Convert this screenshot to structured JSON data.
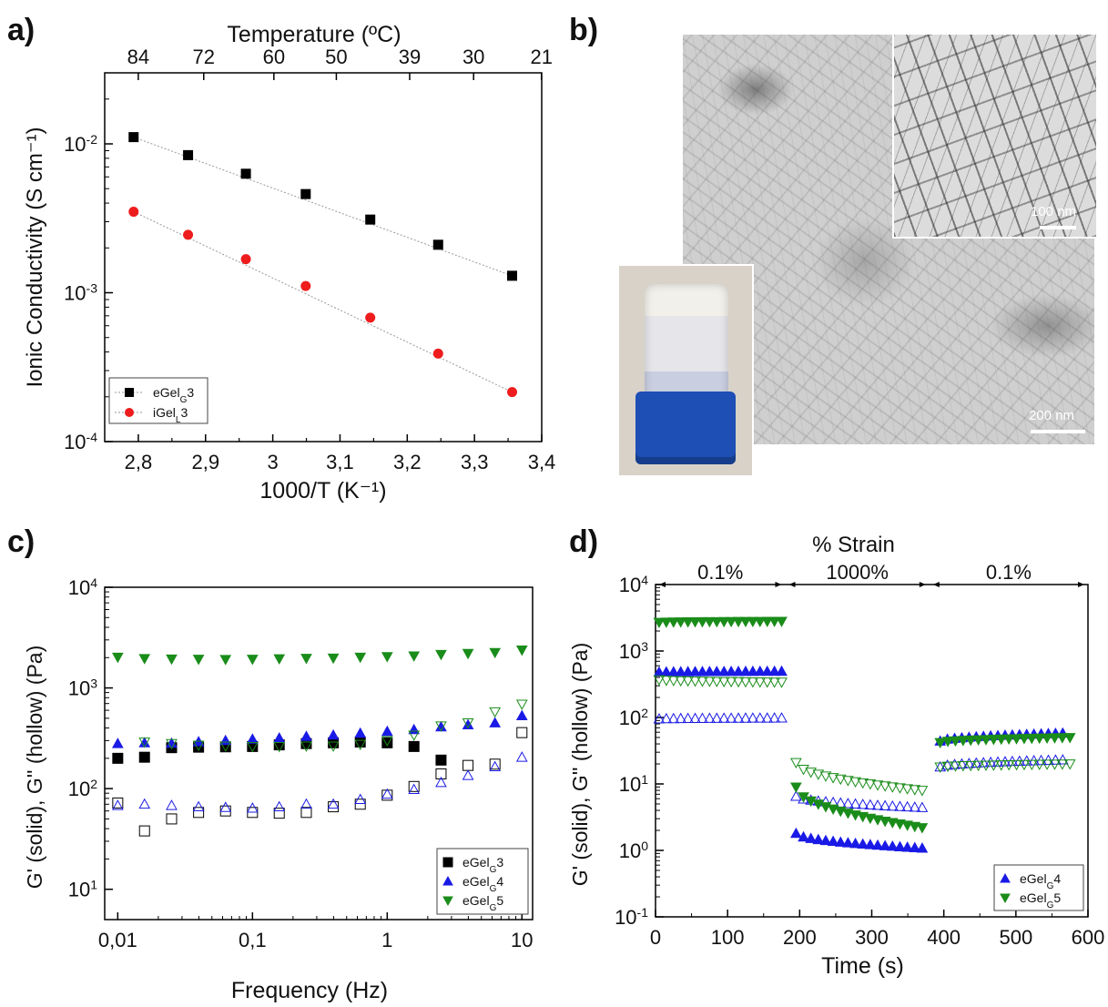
{
  "panels": {
    "a": "a)",
    "b": "b)",
    "c": "c)",
    "d": "d)"
  },
  "chart_data": [
    {
      "type": "scatter",
      "panel": "a",
      "xlabel": "1000/T (K⁻¹)",
      "ylabel": "Ionic Conductivity (S cm⁻¹)",
      "top_axis_label": "Temperature (ºC)",
      "x_ticks": [
        "2,8",
        "2,9",
        "3",
        "3,1",
        "3,2",
        "3,3",
        "3,4"
      ],
      "top_ticks": [
        "84",
        "72",
        "60",
        "50",
        "39",
        "30",
        "21"
      ],
      "xlim": [
        2.75,
        3.4
      ],
      "ylim": [
        0.0001,
        0.03
      ],
      "y_scale": "log",
      "legend_position": "bottom-left",
      "series": [
        {
          "name": "eGelG3",
          "label_main": "eGel",
          "label_sub": "G",
          "label_tail": "3",
          "marker": "square",
          "color": "#000000",
          "x": [
            2.793,
            2.874,
            2.96,
            3.049,
            3.145,
            3.246,
            3.356
          ],
          "y": [
            0.0111,
            0.0084,
            0.0063,
            0.0046,
            0.0031,
            0.0021,
            0.0013
          ]
        },
        {
          "name": "iGelL3",
          "label_main": "iGel",
          "label_sub": "L",
          "label_tail": "3",
          "marker": "circle",
          "color": "#ee1c1c",
          "x": [
            2.793,
            2.874,
            2.96,
            3.049,
            3.145,
            3.246,
            3.356
          ],
          "y": [
            0.0035,
            0.00245,
            0.00168,
            0.00111,
            0.00068,
            0.00039,
            0.000215
          ]
        }
      ]
    },
    {
      "type": "scatter",
      "panel": "c",
      "xlabel": "Frequency (Hz)",
      "ylabel": "G' (solid), G'' (hollow) (Pa)",
      "x_scale": "log",
      "y_scale": "log",
      "x_ticks": [
        "0,01",
        "0,1",
        "1",
        "10"
      ],
      "xlim": [
        0.008,
        12
      ],
      "ylim": [
        5,
        10000
      ],
      "legend_position": "bottom-right",
      "x": [
        0.01,
        0.0158,
        0.0251,
        0.0398,
        0.0631,
        0.1,
        0.158,
        0.251,
        0.398,
        0.631,
        1,
        1.58,
        2.51,
        3.98,
        6.31,
        10
      ],
      "series": [
        {
          "name": "eGelG3",
          "label_main": "eGel",
          "label_sub": "G",
          "label_tail": "3",
          "marker": "square",
          "color": "#000000",
          "Gp": [
            200,
            205,
            255,
            258,
            260,
            262,
            272,
            280,
            285,
            290,
            285,
            262,
            192,
            null,
            null,
            null
          ],
          "Gpp": [
            72,
            38,
            50,
            58,
            60,
            58,
            57,
            58,
            66,
            70,
            86,
            105,
            140,
            170,
            175,
            360
          ]
        },
        {
          "name": "eGelG4",
          "label_main": "eGel",
          "label_sub": "G",
          "label_tail": "4",
          "marker": "triangle-up",
          "color": "#1a1ae6",
          "Gp": [
            280,
            285,
            282,
            292,
            300,
            310,
            318,
            330,
            340,
            355,
            370,
            385,
            410,
            430,
            450,
            530
          ],
          "Gpp": [
            68,
            70,
            68,
            66,
            65,
            64,
            66,
            70,
            70,
            78,
            88,
            98,
            115,
            135,
            165,
            205
          ]
        },
        {
          "name": "eGelG5",
          "label_main": "eGel",
          "label_sub": "G",
          "label_tail": "5",
          "marker": "triangle-down",
          "color": "#1a8c1a",
          "Gp": [
            2020,
            1960,
            1940,
            1930,
            1920,
            1930,
            1950,
            1970,
            1980,
            2020,
            2050,
            2080,
            2150,
            2200,
            2250,
            2380
          ],
          "Gpp": [
            null,
            290,
            280,
            270,
            265,
            262,
            262,
            265,
            265,
            275,
            300,
            340,
            420,
            450,
            580,
            690
          ]
        }
      ]
    },
    {
      "type": "scatter",
      "panel": "d",
      "xlabel": "Time (s)",
      "ylabel": "G' (solid), G'' (hollow) (Pa)",
      "top_title": "% Strain",
      "strain_segments": [
        {
          "label": "0.1%",
          "from": 0,
          "to": 180
        },
        {
          "label": "1000%",
          "from": 180,
          "to": 380
        },
        {
          "label": "0.1%",
          "from": 380,
          "to": 600
        }
      ],
      "x_ticks": [
        "0",
        "100",
        "200",
        "300",
        "400",
        "500",
        "600"
      ],
      "xlim": [
        0,
        600
      ],
      "ylim": [
        0.1,
        10000
      ],
      "y_scale": "log",
      "legend_position": "bottom-right",
      "series": [
        {
          "name": "eGelG4",
          "label_main": "eGel",
          "label_sub": "G",
          "label_tail": "4",
          "marker": "triangle-up",
          "color": "#1a1ae6",
          "segments": [
            {
              "t0": 5,
              "t1": 175,
              "n": 18,
              "Gp_start": 480,
              "Gp_end": 495,
              "Gpp_start": 95,
              "Gpp_end": 98
            },
            {
              "t0": 195,
              "t1": 370,
              "n": 18,
              "Gp_start": 1.8,
              "Gp_end": 1.08,
              "Gpp_start": 6.5,
              "Gpp_end": 4.4
            },
            {
              "t0": 395,
              "t1": 565,
              "n": 18,
              "Gp_start": 44,
              "Gp_end": 58,
              "Gpp_start": 18,
              "Gpp_end": 23
            }
          ]
        },
        {
          "name": "eGelG5",
          "label_main": "eGel",
          "label_sub": "G",
          "label_tail": "5",
          "marker": "triangle-down",
          "color": "#1a8c1a",
          "segments": [
            {
              "t0": 5,
              "t1": 175,
              "n": 18,
              "Gp_start": 2700,
              "Gp_end": 2800,
              "Gpp_start": 370,
              "Gpp_end": 340
            },
            {
              "t0": 195,
              "t1": 370,
              "n": 18,
              "Gp_start": 9,
              "Gp_end": 2.2,
              "Gpp_start": 21,
              "Gpp_end": 8
            },
            {
              "t0": 395,
              "t1": 575,
              "n": 18,
              "Gp_start": 42,
              "Gp_end": 50,
              "Gpp_start": 18,
              "Gpp_end": 20
            }
          ]
        }
      ]
    }
  ],
  "images_b": {
    "scale_main": "200 nm",
    "scale_inset": "100 nm"
  }
}
